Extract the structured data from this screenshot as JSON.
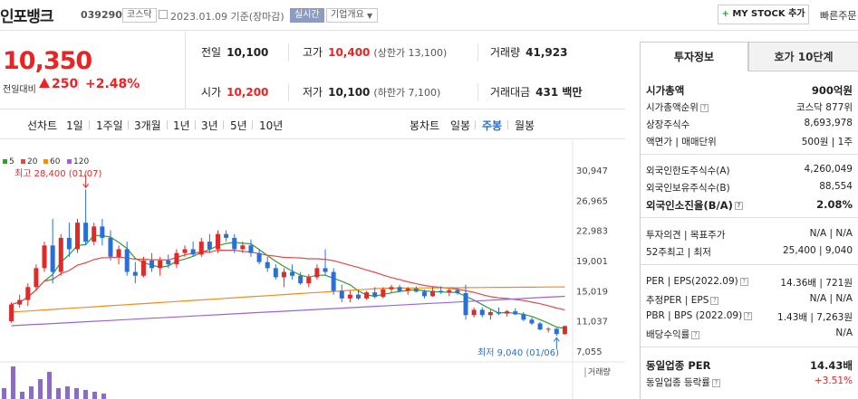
{
  "header": {
    "name": "인포뱅크",
    "code": "039290",
    "market": "코스닥",
    "date": "2023.01.09",
    "date_suffix": "기준(장마감)",
    "realtime": "실시간",
    "overview": "기업개요",
    "my_stock": "MY STOCK 추가",
    "quick": "빠른주문"
  },
  "price": {
    "current": "10,350",
    "label": "전일대비",
    "diff": "250",
    "rate": "+2.48%"
  },
  "stats": {
    "prev_label": "전일",
    "prev": "10,100",
    "high_label": "고가",
    "high": "10,400",
    "upper_limit": "(상한가 13,100)",
    "volume_label": "거래량",
    "volume": "41,923",
    "open_label": "시가",
    "open": "10,200",
    "low_label": "저가",
    "low": "10,100",
    "lower_limit": "(하한가 7,100)",
    "amount_label": "거래대금",
    "amount": "431 백만"
  },
  "range_bar": {
    "line_chart": "선차트",
    "periods": [
      "1일",
      "1주일",
      "3개월",
      "1년",
      "3년",
      "5년",
      "10년"
    ],
    "candle_chart": "봉차트",
    "candle_daily": "일봉",
    "candle_weekly": "주봉",
    "candle_monthly": "월봉"
  },
  "chart_data": {
    "type": "candlestick",
    "interval": "weekly",
    "legend": [
      {
        "name": "5",
        "color": "#2ea02e"
      },
      {
        "name": "20",
        "color": "#e24a4a"
      },
      {
        "name": "60",
        "color": "#f08c1c"
      },
      {
        "name": "120",
        "color": "#9d63d6"
      }
    ],
    "y_ticks": [
      30947,
      26965,
      22983,
      19001,
      15019,
      11037,
      7055
    ],
    "ylim": [
      7055,
      30947
    ],
    "high_label": "최고 28,400 (01/07)",
    "low_label": "최저 9,040 (01/06)",
    "volume_label": "거래량",
    "candles": [
      [
        11000,
        13500,
        10800,
        13200
      ],
      [
        13200,
        14500,
        12800,
        13800
      ],
      [
        13800,
        16000,
        13000,
        15500
      ],
      [
        15500,
        18500,
        15000,
        18000
      ],
      [
        18000,
        21500,
        17500,
        21000
      ],
      [
        21000,
        24500,
        16000,
        17500
      ],
      [
        17500,
        22500,
        17000,
        22000
      ],
      [
        22000,
        24000,
        19500,
        20500
      ],
      [
        20500,
        24500,
        20000,
        24000
      ],
      [
        24000,
        28400,
        21000,
        21500
      ],
      [
        21500,
        24000,
        21000,
        23500
      ],
      [
        23500,
        24500,
        21000,
        22000
      ],
      [
        22000,
        23000,
        19000,
        19500
      ],
      [
        19500,
        21000,
        18500,
        20500
      ],
      [
        20500,
        21500,
        17000,
        17500
      ],
      [
        17500,
        18800,
        16000,
        17000
      ],
      [
        17000,
        19500,
        16800,
        19000
      ],
      [
        19000,
        20000,
        17500,
        18000
      ],
      [
        18000,
        19500,
        17000,
        19000
      ],
      [
        19000,
        19800,
        18000,
        18500
      ],
      [
        18500,
        20500,
        18000,
        20000
      ],
      [
        20000,
        21000,
        19500,
        20500
      ],
      [
        20500,
        21500,
        19500,
        19800
      ],
      [
        19800,
        22000,
        19500,
        21500
      ],
      [
        21500,
        22500,
        20000,
        20500
      ],
      [
        20500,
        23000,
        20000,
        22500
      ],
      [
        22500,
        23000,
        21500,
        22000
      ],
      [
        22000,
        22500,
        20000,
        20500
      ],
      [
        20500,
        21500,
        20000,
        21000
      ],
      [
        21000,
        21800,
        19500,
        20000
      ],
      [
        20000,
        20500,
        18500,
        18800
      ],
      [
        18800,
        19500,
        17500,
        18000
      ],
      [
        18000,
        18500,
        16500,
        16800
      ],
      [
        16800,
        18000,
        15500,
        17500
      ],
      [
        17500,
        18500,
        16500,
        17000
      ],
      [
        17000,
        17500,
        15800,
        16000
      ],
      [
        16000,
        17200,
        15500,
        16800
      ],
      [
        16800,
        18500,
        16500,
        18000
      ],
      [
        18000,
        20500,
        17000,
        17500
      ],
      [
        17500,
        18000,
        14500,
        15000
      ],
      [
        15000,
        15800,
        13500,
        14000
      ],
      [
        14000,
        15000,
        13500,
        14500
      ],
      [
        14500,
        15200,
        13800,
        14000
      ],
      [
        14000,
        15000,
        13800,
        14800
      ],
      [
        14800,
        15500,
        14000,
        14200
      ],
      [
        14200,
        15500,
        14000,
        15200
      ],
      [
        15200,
        15800,
        14800,
        15500
      ],
      [
        15500,
        15800,
        14800,
        15000
      ],
      [
        15000,
        15500,
        14500,
        15300
      ],
      [
        15300,
        15600,
        14800,
        14900
      ],
      [
        14900,
        15200,
        14000,
        14300
      ],
      [
        14300,
        15500,
        14200,
        15000
      ],
      [
        15000,
        15600,
        14600,
        14800
      ],
      [
        14800,
        15300,
        14300,
        15100
      ],
      [
        15100,
        15400,
        14500,
        14700
      ],
      [
        14700,
        15800,
        11200,
        11800
      ],
      [
        11800,
        12800,
        11500,
        12500
      ],
      [
        12500,
        12800,
        11500,
        11800
      ],
      [
        11800,
        12500,
        11200,
        12200
      ],
      [
        12200,
        12800,
        11800,
        12000
      ],
      [
        12000,
        12500,
        11600,
        12300
      ],
      [
        12300,
        12700,
        11800,
        11900
      ],
      [
        11900,
        12200,
        11000,
        11200
      ],
      [
        11200,
        11500,
        10500,
        10700
      ],
      [
        10700,
        10900,
        9800,
        9900
      ],
      [
        9900,
        10200,
        9500,
        10000
      ],
      [
        10000,
        10100,
        9040,
        9300
      ],
      [
        9300,
        10400,
        9200,
        10350
      ]
    ],
    "volume": [
      0.3,
      0.9,
      0.2,
      0.35,
      0.55,
      0.75,
      0.3,
      0.35,
      0.3,
      0.25,
      0.2,
      0.15
    ]
  },
  "right_panel": {
    "tabs": [
      "투자정보",
      "호가 10단계"
    ],
    "market_cap_label": "시가총액",
    "market_cap": "900억원",
    "rank_label": "시가총액순위",
    "rank": "코스닥 877위",
    "shares_label": "상장주식수",
    "shares": "8,693,978",
    "face_label": "액면가 | 매매단위",
    "face": "500원 | 1주",
    "foreign_limit_label": "외국인한도주식수(A)",
    "foreign_limit": "4,260,049",
    "foreign_hold_label": "외국인보유주식수(B)",
    "foreign_hold": "88,554",
    "foreign_rate_label": "외국인소진율(B/A)",
    "foreign_rate": "2.08%",
    "opinion_label": "투자의견 | 목표주가",
    "opinion": "N/A | N/A",
    "week52_label": "52주최고 | 최저",
    "week52": "25,400 | 9,040",
    "per_label": "PER | EPS(2022.09)",
    "per": "14.36배 | 721원",
    "est_per_label": "추정PER | EPS",
    "est_per": "N/A | N/A",
    "pbr_label": "PBR | BPS (2022.09)",
    "pbr": "1.43배 | 7,263원",
    "div_label": "배당수익률",
    "div": "N/A",
    "sector_per_label": "동일업종 PER",
    "sector_per": "14.43배",
    "sector_rate_label": "동일업종 등락률",
    "sector_rate": "+3.51%"
  }
}
